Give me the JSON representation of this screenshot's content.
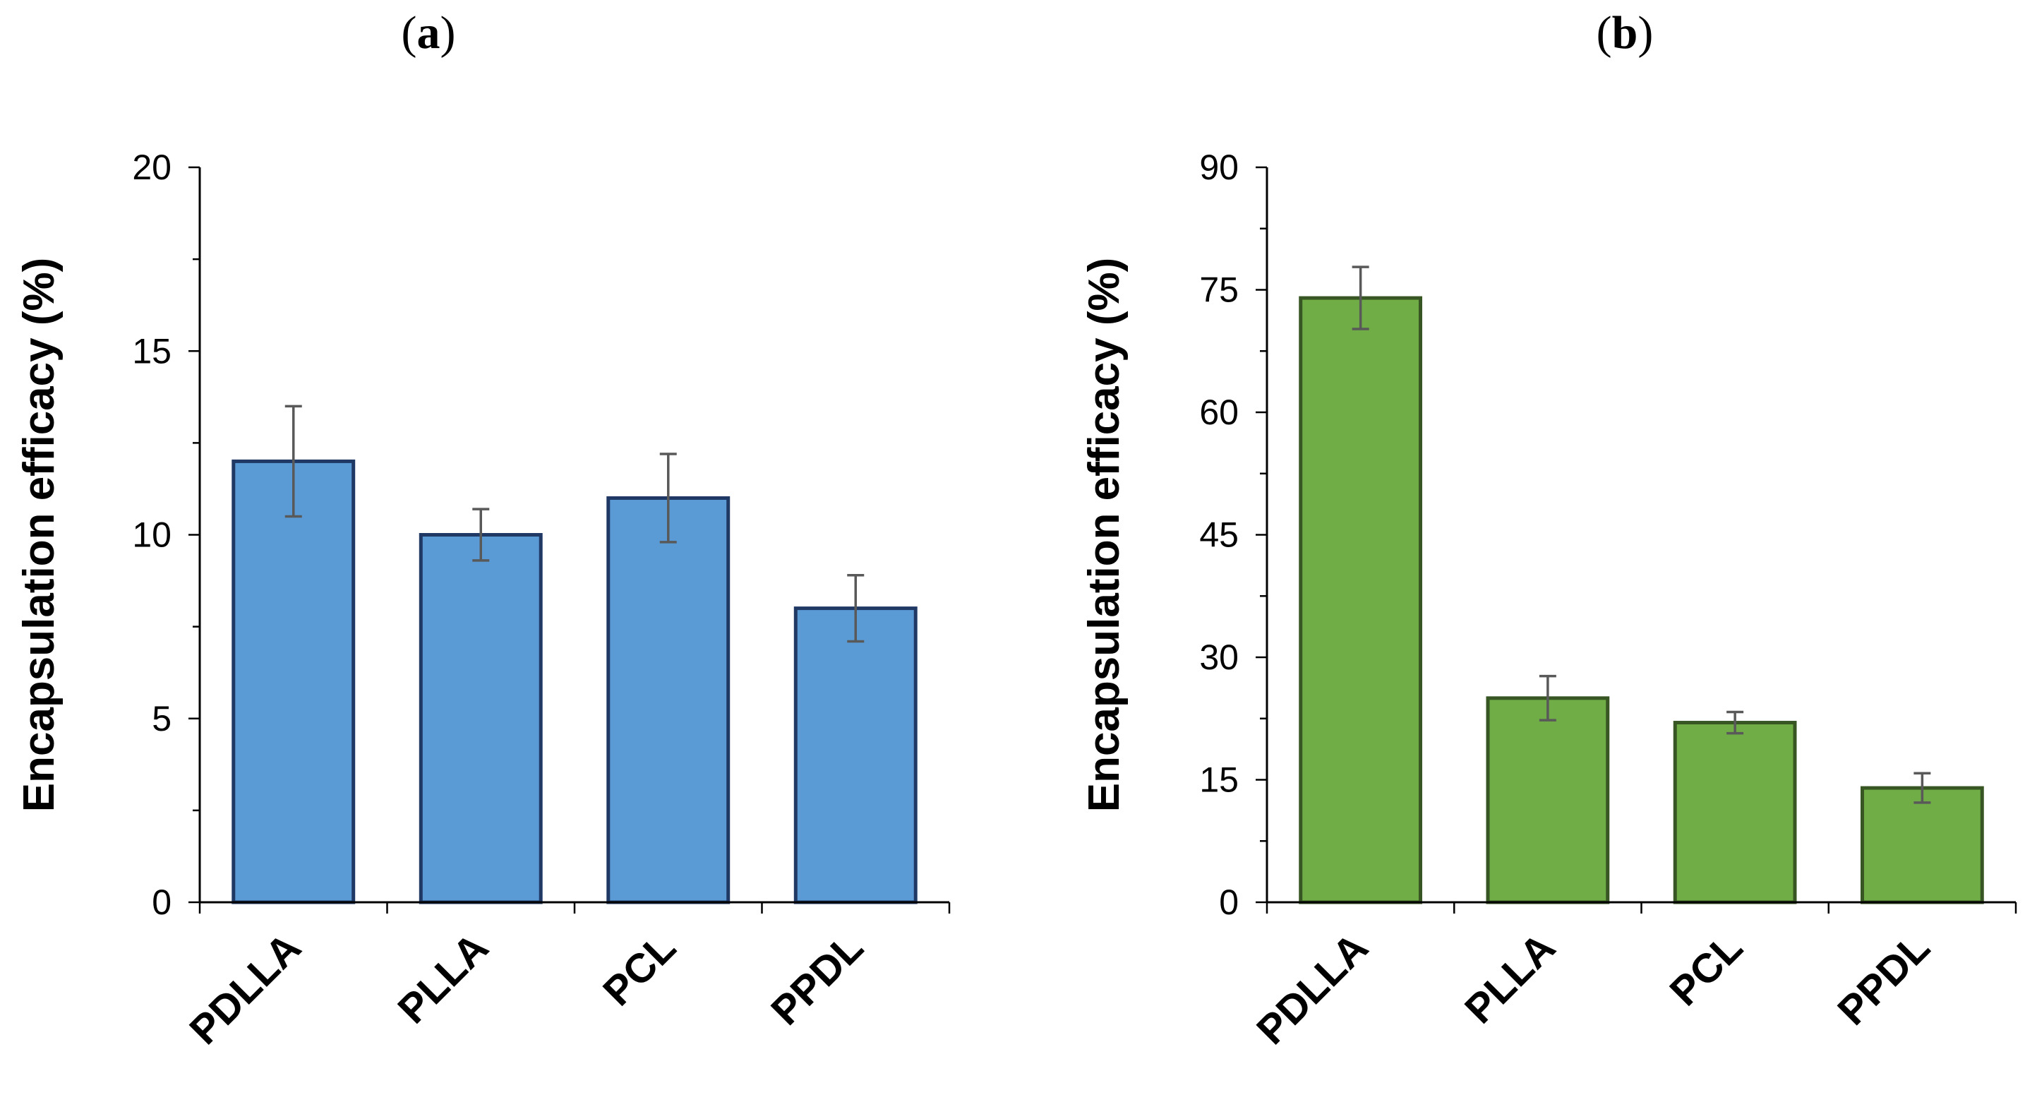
{
  "chart_data": [
    {
      "panel": "a",
      "type": "bar",
      "categories": [
        "PDLLA",
        "PLLA",
        "PCL",
        "PPDL"
      ],
      "values": [
        12,
        10,
        11,
        8
      ],
      "errors": [
        1.5,
        0.7,
        1.2,
        0.9
      ],
      "ylabel": "Encapsulation efficacy (%)",
      "xlabel": "",
      "ylim": [
        0,
        20
      ],
      "yticks": [
        0,
        5,
        10,
        15,
        20
      ],
      "bar_fill": "#5b9bd5",
      "bar_stroke": "#1f3864"
    },
    {
      "panel": "b",
      "type": "bar",
      "categories": [
        "PDLLA",
        "PLLA",
        "PCL",
        "PPDL"
      ],
      "values": [
        74,
        25,
        22,
        14
      ],
      "errors": [
        3.8,
        2.7,
        1.3,
        1.8
      ],
      "ylabel": "Encapsulation efficacy (%)",
      "xlabel": "",
      "ylim": [
        0,
        90
      ],
      "yticks": [
        0,
        15,
        30,
        45,
        60,
        75,
        90
      ],
      "bar_fill": "#70ad47",
      "bar_stroke": "#375623"
    }
  ]
}
